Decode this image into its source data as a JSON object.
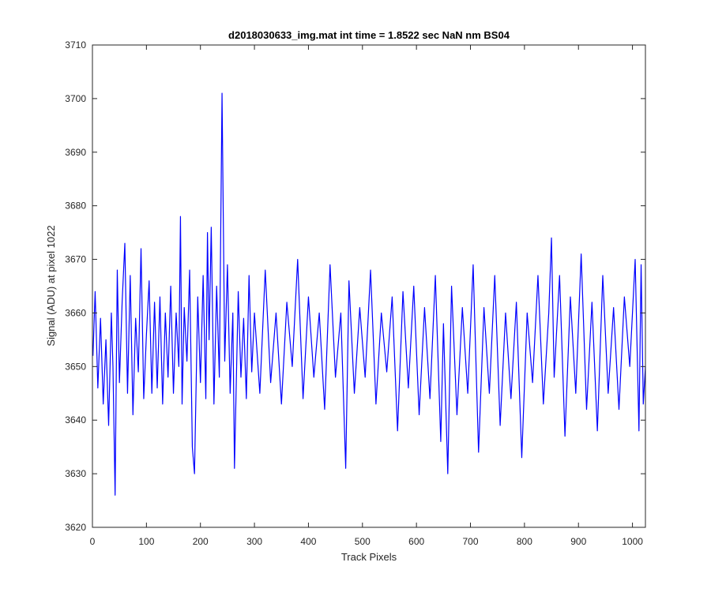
{
  "chart_data": {
    "type": "line",
    "title": "d2018030633_img.mat int time = 1.8522 sec  NaN nm BS04",
    "xlabel": "Track Pixels",
    "ylabel": "Signal (ADU) at pixel 1022",
    "xlim": [
      0,
      1024
    ],
    "ylim": [
      3620,
      3710
    ],
    "xticks": [
      0,
      100,
      200,
      300,
      400,
      500,
      600,
      700,
      800,
      900,
      1000
    ],
    "yticks": [
      3620,
      3630,
      3640,
      3650,
      3660,
      3670,
      3680,
      3690,
      3700,
      3710
    ],
    "grid": false,
    "line_color": "#0000ff",
    "series": [
      {
        "x": [
          1,
          5,
          10,
          15,
          20,
          25,
          30,
          35,
          38,
          42,
          46,
          50,
          55,
          60,
          65,
          70,
          75,
          80,
          85,
          90,
          95,
          100,
          105,
          110,
          115,
          120,
          125,
          130,
          135,
          140,
          145,
          150,
          155,
          160,
          163,
          166,
          170,
          175,
          180,
          185,
          189,
          195,
          200,
          205,
          210,
          213,
          216,
          220,
          225,
          230,
          235,
          240,
          245,
          250,
          255,
          260,
          263,
          270,
          275,
          280,
          285,
          290,
          295,
          300,
          310,
          320,
          330,
          340,
          350,
          360,
          370,
          380,
          390,
          400,
          410,
          420,
          430,
          440,
          450,
          460,
          469,
          475,
          485,
          495,
          505,
          515,
          525,
          535,
          545,
          555,
          565,
          575,
          585,
          595,
          605,
          615,
          625,
          635,
          645,
          650,
          658,
          665,
          675,
          685,
          695,
          705,
          715,
          725,
          735,
          745,
          755,
          765,
          775,
          785,
          795,
          805,
          815,
          825,
          835,
          845,
          850,
          855,
          865,
          875,
          885,
          895,
          905,
          915,
          925,
          935,
          945,
          955,
          965,
          975,
          985,
          995,
          1005,
          1012,
          1016,
          1020,
          1024
        ],
        "y": [
          3652,
          3664,
          3646,
          3659,
          3643,
          3655,
          3639,
          3660,
          3650,
          3626,
          3668,
          3647,
          3662,
          3673,
          3645,
          3667,
          3641,
          3659,
          3649,
          3672,
          3644,
          3656,
          3666,
          3645,
          3662,
          3646,
          3663,
          3643,
          3660,
          3648,
          3665,
          3645,
          3660,
          3650,
          3678,
          3643,
          3661,
          3651,
          3668,
          3635,
          3630,
          3663,
          3647,
          3667,
          3644,
          3675,
          3655,
          3676,
          3643,
          3665,
          3648,
          3701,
          3651,
          3669,
          3645,
          3660,
          3631,
          3664,
          3648,
          3659,
          3644,
          3667,
          3649,
          3660,
          3645,
          3668,
          3647,
          3660,
          3643,
          3662,
          3650,
          3670,
          3644,
          3663,
          3648,
          3660,
          3642,
          3669,
          3648,
          3660,
          3631,
          3666,
          3645,
          3661,
          3648,
          3668,
          3643,
          3660,
          3649,
          3663,
          3638,
          3664,
          3646,
          3665,
          3641,
          3661,
          3644,
          3667,
          3636,
          3658,
          3630,
          3665,
          3641,
          3661,
          3645,
          3669,
          3634,
          3661,
          3645,
          3667,
          3639,
          3660,
          3644,
          3662,
          3633,
          3660,
          3647,
          3667,
          3643,
          3660,
          3674,
          3648,
          3667,
          3637,
          3663,
          3645,
          3671,
          3642,
          3662,
          3638,
          3667,
          3645,
          3661,
          3642,
          3663,
          3650,
          3670,
          3638,
          3669,
          3643,
          3650
        ]
      }
    ]
  }
}
